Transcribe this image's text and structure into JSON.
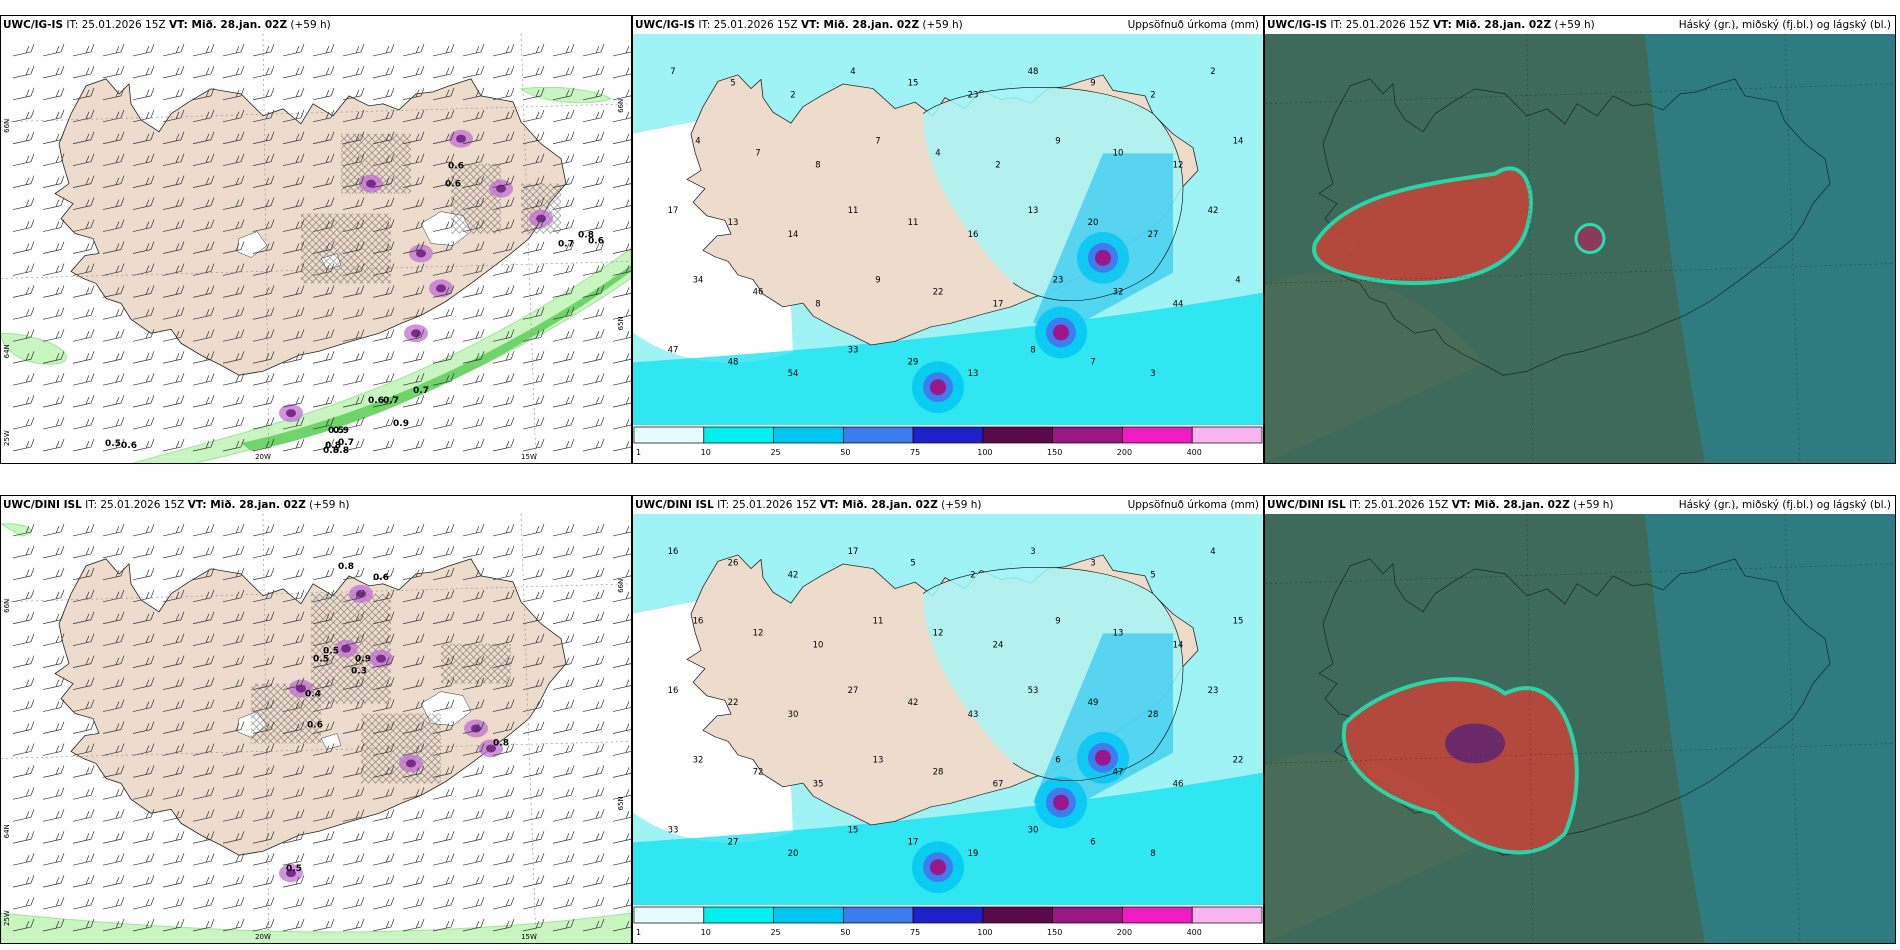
{
  "rows": [
    {
      "model": "UWC/IG-IS",
      "init_label": "IT: 25.01.2026 15Z",
      "valid_label": "VT: Mið. 28.jan. 02Z",
      "lead_label": "(+59 h)",
      "wind_values": [
        "0.5",
        "0.6",
        "0.7",
        "0.8",
        "0.9",
        "0.6",
        "0.7",
        "0.8",
        "0.6",
        "0.5",
        "0.6",
        "0.7",
        "0.7",
        "0.9",
        "0.8",
        "0.8",
        "0.6"
      ],
      "precip_values": [
        "7",
        "5",
        "2",
        "4",
        "15",
        "23",
        "48",
        "9",
        "2",
        "2",
        "4",
        "7",
        "8",
        "7",
        "4",
        "2",
        "9",
        "10",
        "12",
        "14",
        "17",
        "13",
        "14",
        "11",
        "11",
        "16",
        "13",
        "20",
        "27",
        "42",
        "34",
        "46",
        "8",
        "9",
        "22",
        "17",
        "23",
        "32",
        "44",
        "4",
        "47",
        "48",
        "54",
        "33",
        "29",
        "13",
        "8",
        "7",
        "3"
      ]
    },
    {
      "model": "UWC/DINI ISL",
      "init_label": "IT: 25.01.2026 15Z",
      "valid_label": "VT: Mið. 28.jan. 02Z",
      "lead_label": "(+59 h)",
      "wind_values": [
        "0.8",
        "0.6",
        "0.5",
        "0.3",
        "0.4",
        "0.5",
        "0.9",
        "0.6",
        "0.8",
        "0.5"
      ],
      "precip_values": [
        "16",
        "26",
        "42",
        "17",
        "5",
        "2",
        "3",
        "3",
        "5",
        "4",
        "16",
        "12",
        "10",
        "11",
        "12",
        "24",
        "9",
        "13",
        "14",
        "15",
        "16",
        "22",
        "30",
        "27",
        "42",
        "43",
        "53",
        "49",
        "28",
        "23",
        "32",
        "72",
        "35",
        "13",
        "28",
        "67",
        "6",
        "47",
        "46",
        "22",
        "33",
        "27",
        "20",
        "15",
        "17",
        "19",
        "30",
        "6",
        "8"
      ]
    }
  ],
  "precip_title": "Uppsöfnuð úrkoma (mm)",
  "cloud_title": "Háský (gr.), miðský (fj.bl.) og lágský (bl.)",
  "axis_labels": {
    "lat_66": "66N",
    "lat_64": "64N",
    "lat_65": "65N",
    "lon_20w": "20W",
    "lon_15w": "15W",
    "lon_25w": "25W"
  },
  "colorbar": {
    "ticks": [
      "1",
      "10",
      "25",
      "50",
      "75",
      "100",
      "150",
      "200",
      "400"
    ],
    "colors": [
      "#e6fbfb",
      "#00efef",
      "#00c6f2",
      "#3c7df0",
      "#2020c8",
      "#5a0a4a",
      "#9c1688",
      "#f01cc4",
      "#f8b4f0"
    ]
  },
  "palette": {
    "land": "#eddccb",
    "sea_light": "#9ff3f5",
    "sea_mid": "#00dff0",
    "cloud_high": "#2c7f86",
    "cloud_mid": "#4d6d55",
    "cloud_low": "#c0463a"
  }
}
